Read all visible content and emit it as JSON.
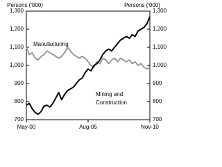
{
  "chart_data": {
    "type": "line",
    "y_label": "Persons ('000)",
    "y2_label": "Persons ('000)",
    "categories": [
      "May-00",
      null,
      null,
      null,
      null,
      null,
      null,
      null,
      null,
      null,
      null,
      null,
      null,
      null,
      null,
      null,
      null,
      null,
      null,
      null,
      null,
      "Aug-05",
      null,
      null,
      null,
      null,
      null,
      null,
      null,
      null,
      null,
      null,
      null,
      null,
      null,
      null,
      null,
      null,
      null,
      null,
      null,
      null,
      "Nov-10"
    ],
    "series": [
      {
        "name": "Manufacturing",
        "color": "#999999",
        "values": [
          1100,
          1060,
          1070,
          1040,
          1030,
          1050,
          1060,
          1080,
          1070,
          1060,
          1050,
          1040,
          1050,
          1070,
          1100,
          1080,
          1060,
          1050,
          1040,
          1050,
          1040,
          1020,
          1000,
          990,
          1020,
          1010,
          1040,
          1030,
          1010,
          1030,
          1040,
          1020,
          1040,
          1030,
          1020,
          1030,
          1010,
          1020,
          1000,
          1010,
          990,
          980,
          990
        ]
      },
      {
        "name": "Mining and Construction",
        "color": "#000000",
        "values": [
          780,
          790,
          760,
          740,
          730,
          745,
          775,
          780,
          770,
          790,
          820,
          850,
          810,
          840,
          860,
          870,
          880,
          900,
          920,
          930,
          960,
          980,
          970,
          1000,
          1010,
          1030,
          1060,
          1080,
          1090,
          1080,
          1100,
          1120,
          1140,
          1150,
          1160,
          1150,
          1170,
          1160,
          1190,
          1200,
          1210,
          1230,
          1270
        ]
      }
    ],
    "annotations": [
      "Manufacturing",
      "Mining and",
      "Construction"
    ],
    "ylim": [
      700,
      1300
    ],
    "yticks": [
      700,
      800,
      900,
      {
        "value": 1000,
        "label": "1,000"
      },
      {
        "value": 1100,
        "label": "1,100"
      },
      {
        "value": 1200,
        "label": "1,200"
      },
      {
        "value": 1300,
        "label": "1,300"
      }
    ],
    "y2lim": [
      700,
      1300
    ],
    "y2ticks": [
      700,
      800,
      900,
      {
        "value": 1000,
        "label": "1,000"
      },
      {
        "value": 1100,
        "label": "1,100"
      },
      {
        "value": 1200,
        "label": "1,200"
      },
      {
        "value": 1300,
        "label": "1,300"
      }
    ]
  }
}
